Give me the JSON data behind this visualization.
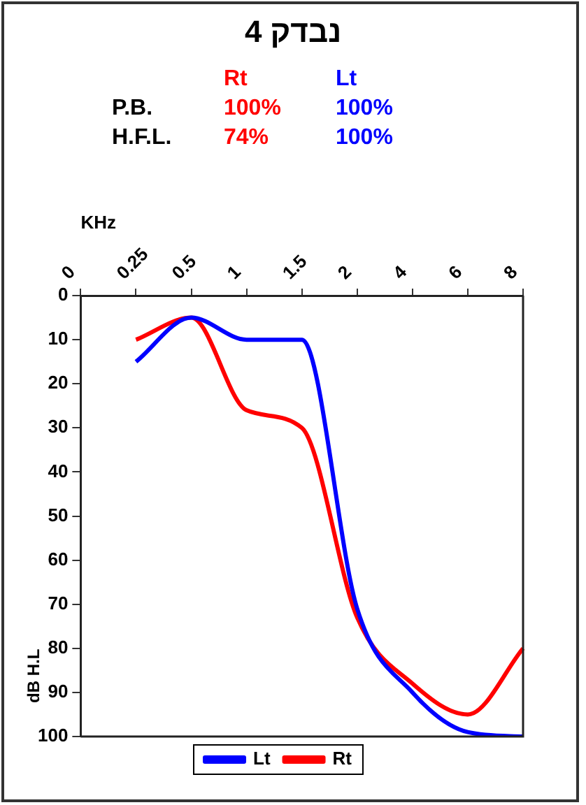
{
  "chart_data": {
    "type": "line",
    "title": "נבדק 4",
    "xlabel": "KHz",
    "ylabel": "dB H.L",
    "annotations": [
      "Rt",
      "Lt",
      "P.B.",
      "100%",
      "100%",
      "H.F.L.",
      "74%",
      "100%"
    ],
    "categories": [
      "0",
      "0.25",
      "0.5",
      "1",
      "1.5",
      "2",
      "4",
      "6",
      "8"
    ],
    "series": [
      {
        "name": "Lt",
        "color": "#0000ff",
        "values": [
          null,
          15,
          5,
          10,
          10,
          71,
          90,
          99,
          100
        ]
      },
      {
        "name": "Rt",
        "color": "#ff0000",
        "values": [
          null,
          10,
          5,
          26,
          30,
          73,
          88,
          95,
          80
        ]
      }
    ],
    "ylim": [
      100,
      0
    ],
    "yticks": [
      0,
      10,
      20,
      30,
      40,
      50,
      60,
      70,
      80,
      90,
      100
    ],
    "grid": false,
    "legend": "bottom",
    "marker": "none",
    "line_style": "solid"
  }
}
